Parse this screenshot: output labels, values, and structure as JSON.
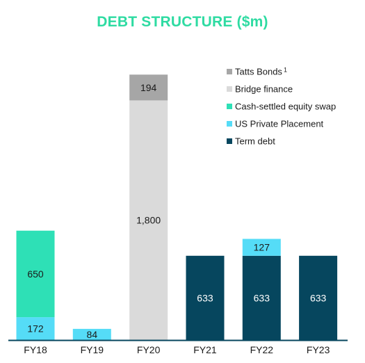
{
  "chart_data": {
    "type": "bar",
    "stacked": true,
    "title": "DEBT STRUCTURE ($m)",
    "title_color": "#2EDBA2",
    "categories": [
      "FY18",
      "FY19",
      "FY20",
      "FY21",
      "FY22",
      "FY23"
    ],
    "series": [
      {
        "name": "Term debt",
        "color": "#06465E",
        "label_color": "#ffffff",
        "values": [
          0,
          0,
          0,
          633,
          633,
          633
        ]
      },
      {
        "name": "US Private Placement",
        "color": "#55DCF7",
        "label_color": "#1a1a1a",
        "values": [
          172,
          84,
          0,
          0,
          127,
          0
        ]
      },
      {
        "name": "Cash-settled equity swap",
        "color": "#2EE0B6",
        "label_color": "#1a1a1a",
        "values": [
          650,
          0,
          0,
          0,
          0,
          0
        ]
      },
      {
        "name": "Bridge finance",
        "color": "#DADADA",
        "label_color": "#1a1a1a",
        "values": [
          0,
          0,
          1800,
          0,
          0,
          0
        ]
      },
      {
        "name": "Tatts Bonds",
        "name_superscript": "1",
        "color": "#A6A6A6",
        "label_color": "#1a1a1a",
        "values": [
          0,
          0,
          194,
          0,
          0,
          0
        ]
      }
    ],
    "data_labels": [
      [
        "",
        "",
        "",
        "633",
        "633",
        "633"
      ],
      [
        "172",
        "84",
        "",
        "",
        "127",
        ""
      ],
      [
        "650",
        "",
        "",
        "",
        "",
        ""
      ],
      [
        "",
        "",
        "1,800",
        "",
        "",
        ""
      ],
      [
        "",
        "",
        "194",
        "",
        "",
        ""
      ]
    ],
    "legend_order": [
      "Tatts Bonds",
      "Bridge finance",
      "Cash-settled equity swap",
      "US Private Placement",
      "Term debt"
    ],
    "legend_placement": "top-right",
    "ylim": [
      0,
      2000
    ],
    "grid": false,
    "axis_color": "#06465E"
  }
}
